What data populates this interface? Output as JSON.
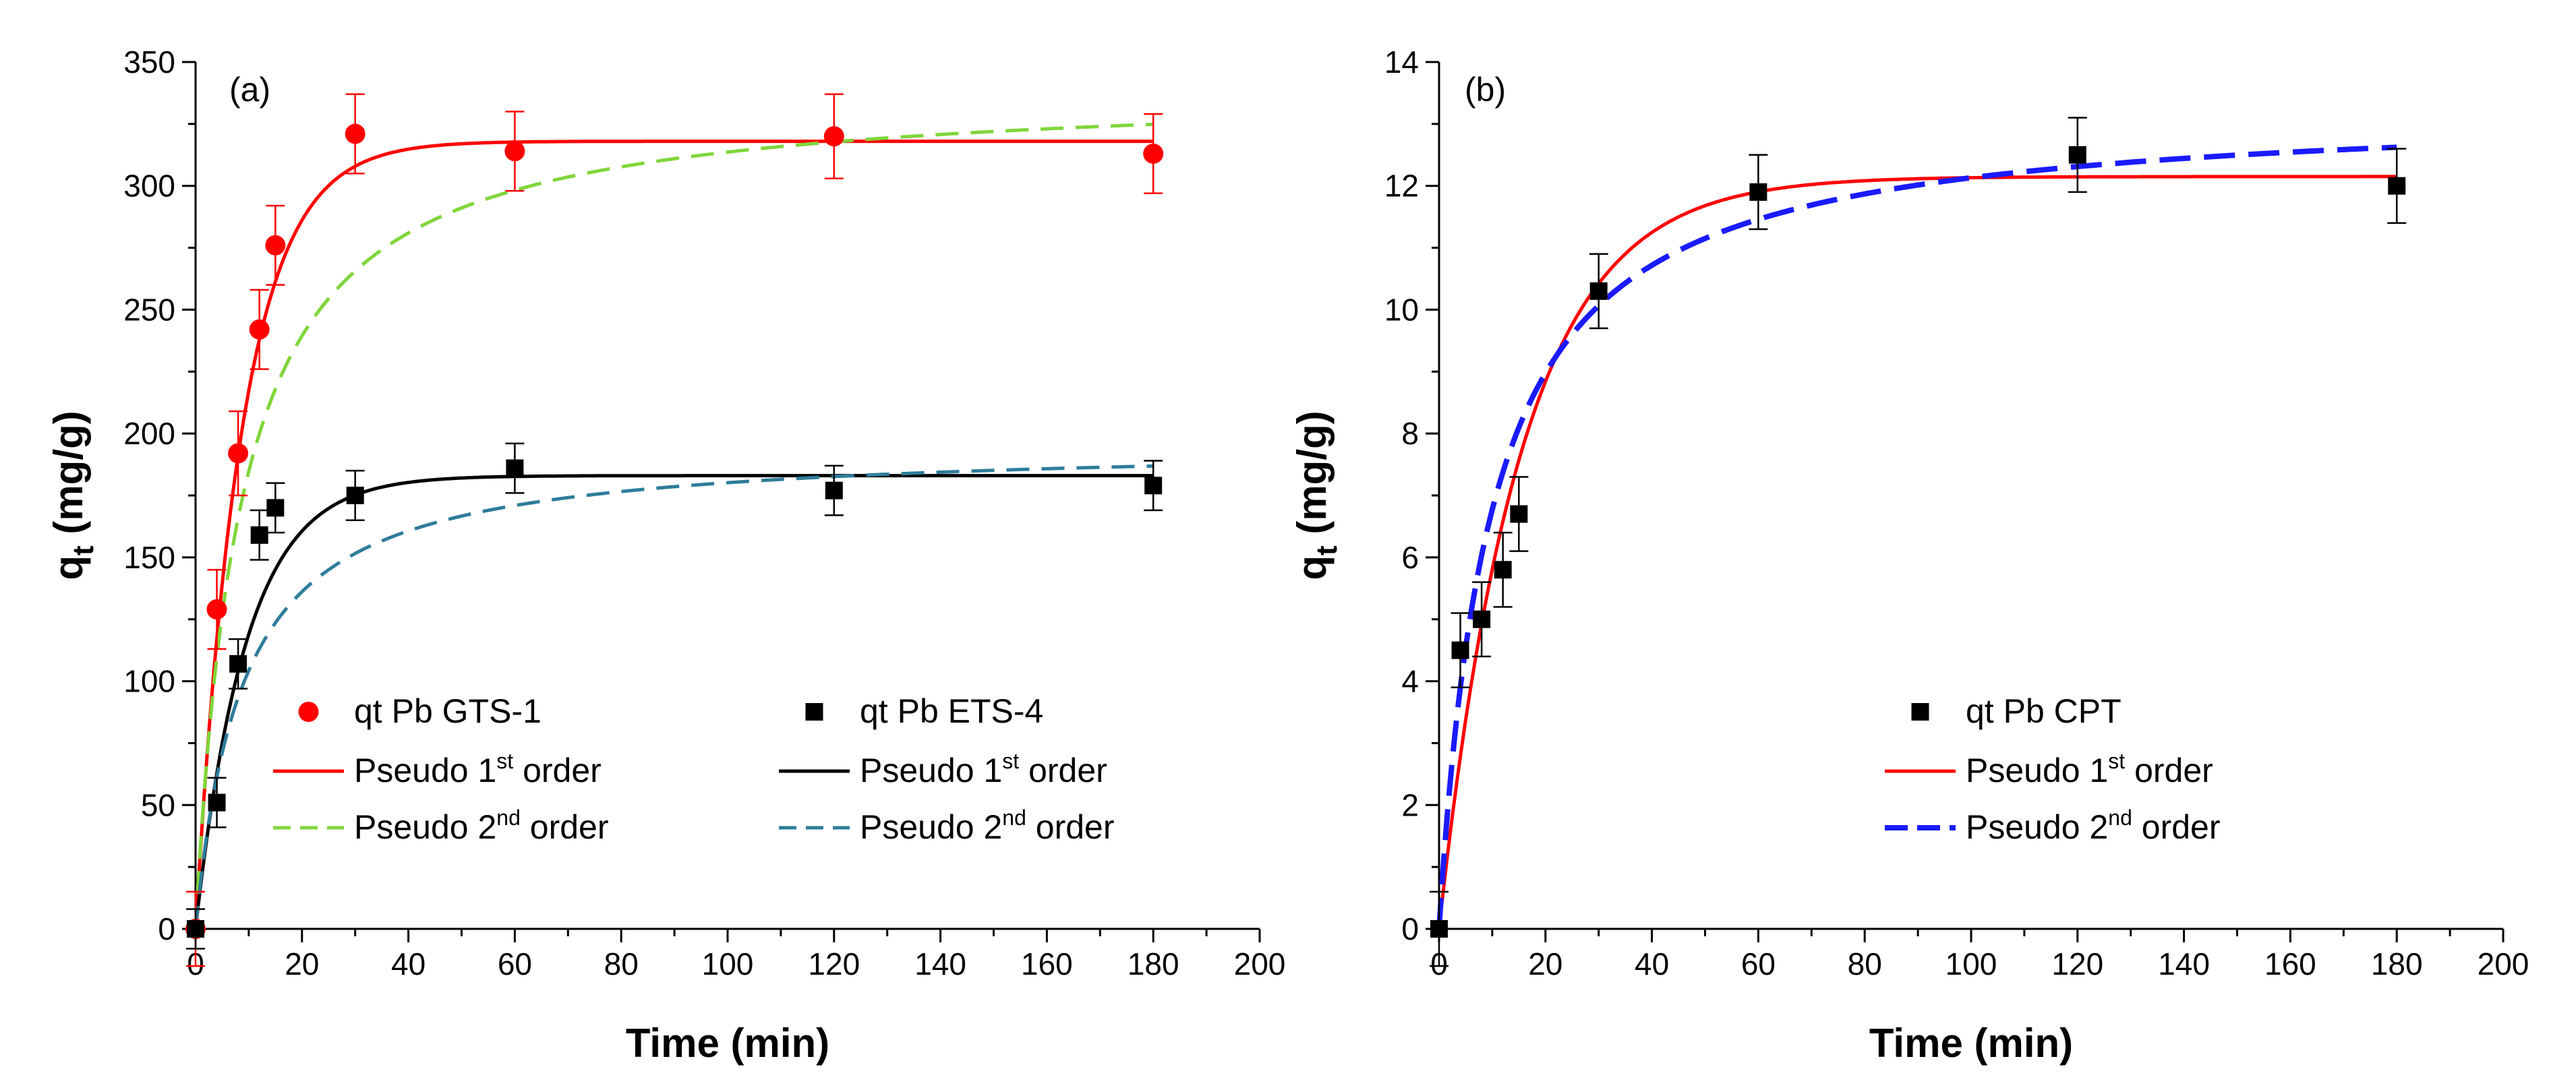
{
  "chart_data": [
    {
      "type": "scatter",
      "panel_label": "(a)",
      "xlabel": "Time (min)",
      "ylabel_main": "q",
      "ylabel_sub": "t",
      "ylabel_rest": " (mg/g)",
      "xlim": [
        0,
        200
      ],
      "ylim": [
        0,
        350
      ],
      "xticks": [
        0,
        20,
        40,
        60,
        80,
        100,
        120,
        140,
        160,
        180,
        200
      ],
      "yticks": [
        0,
        50,
        100,
        150,
        200,
        250,
        300,
        350
      ],
      "grid": false,
      "legend_placement": "bottom-center",
      "series": [
        {
          "name": "qt Pb GTS-1",
          "kind": "points",
          "marker": "circle",
          "color": "#ff0000",
          "x": [
            0,
            4,
            8,
            12,
            15,
            30,
            60,
            120,
            180
          ],
          "y": [
            0,
            129,
            192,
            242,
            276,
            321,
            314,
            320,
            313
          ],
          "err": [
            15,
            16,
            17,
            16,
            16,
            16,
            16,
            17,
            16
          ]
        },
        {
          "name": "qt Pb ETS-4",
          "kind": "points",
          "marker": "square",
          "color": "#000000",
          "x": [
            0,
            4,
            8,
            12,
            15,
            30,
            60,
            120,
            180
          ],
          "y": [
            0,
            51,
            107,
            159,
            170,
            175,
            186,
            177,
            179
          ],
          "err": [
            8,
            10,
            10,
            10,
            10,
            10,
            10,
            10,
            10
          ]
        },
        {
          "name_prefix": "Pseudo 1",
          "name_sup": "st",
          "name_suffix": " order",
          "kind": "fit",
          "model": "pfo",
          "qe": 318,
          "k": 0.115,
          "color": "#ff0000",
          "dash": "solid"
        },
        {
          "name_prefix": "Pseudo 2",
          "name_sup": "nd",
          "name_suffix": " order",
          "kind": "fit",
          "model": "pso",
          "qe": 340,
          "k": 0.00035,
          "color": "#7fd63a",
          "dash": "dashed"
        },
        {
          "name_prefix": "Pseudo 1",
          "name_sup": "st",
          "name_suffix": " order",
          "kind": "fit",
          "model": "pfo",
          "qe": 183,
          "k": 0.105,
          "color": "#000000",
          "dash": "solid"
        },
        {
          "name_prefix": "Pseudo 2",
          "name_sup": "nd",
          "name_suffix": " order",
          "kind": "fit",
          "model": "pso",
          "qe": 196,
          "k": 0.00058,
          "color": "#2e7d9a",
          "dash": "dashed"
        }
      ]
    },
    {
      "type": "scatter",
      "panel_label": "(b)",
      "xlabel": "Time (min)",
      "ylabel_main": "q",
      "ylabel_sub": "t",
      "ylabel_rest": " (mg/g)",
      "xlim": [
        0,
        200
      ],
      "ylim": [
        0,
        14
      ],
      "xticks": [
        0,
        20,
        40,
        60,
        80,
        100,
        120,
        140,
        160,
        180,
        200
      ],
      "yticks": [
        0,
        2,
        4,
        6,
        8,
        10,
        12,
        14
      ],
      "grid": false,
      "legend_placement": "bottom-center",
      "series": [
        {
          "name": "qt Pb CPT",
          "kind": "points",
          "marker": "square",
          "color": "#000000",
          "x": [
            0,
            4,
            8,
            12,
            15,
            30,
            60,
            120,
            180
          ],
          "y": [
            0,
            4.5,
            5.0,
            5.8,
            6.7,
            10.3,
            11.9,
            12.5,
            12.0
          ],
          "err": [
            0.6,
            0.6,
            0.6,
            0.6,
            0.6,
            0.6,
            0.6,
            0.6,
            0.6
          ]
        },
        {
          "name_prefix": "Pseudo 1",
          "name_sup": "st",
          "name_suffix": " order",
          "kind": "fit",
          "model": "pfo",
          "qe": 12.15,
          "k": 0.065,
          "color": "#ff0000",
          "dash": "solid"
        },
        {
          "name_prefix": "Pseudo 2",
          "name_sup": "nd",
          "name_suffix": " order",
          "kind": "fit",
          "model": "pso",
          "qe": 13.3,
          "k": 0.0078,
          "color": "#1a1aff",
          "dash": "bigdash"
        }
      ]
    }
  ]
}
